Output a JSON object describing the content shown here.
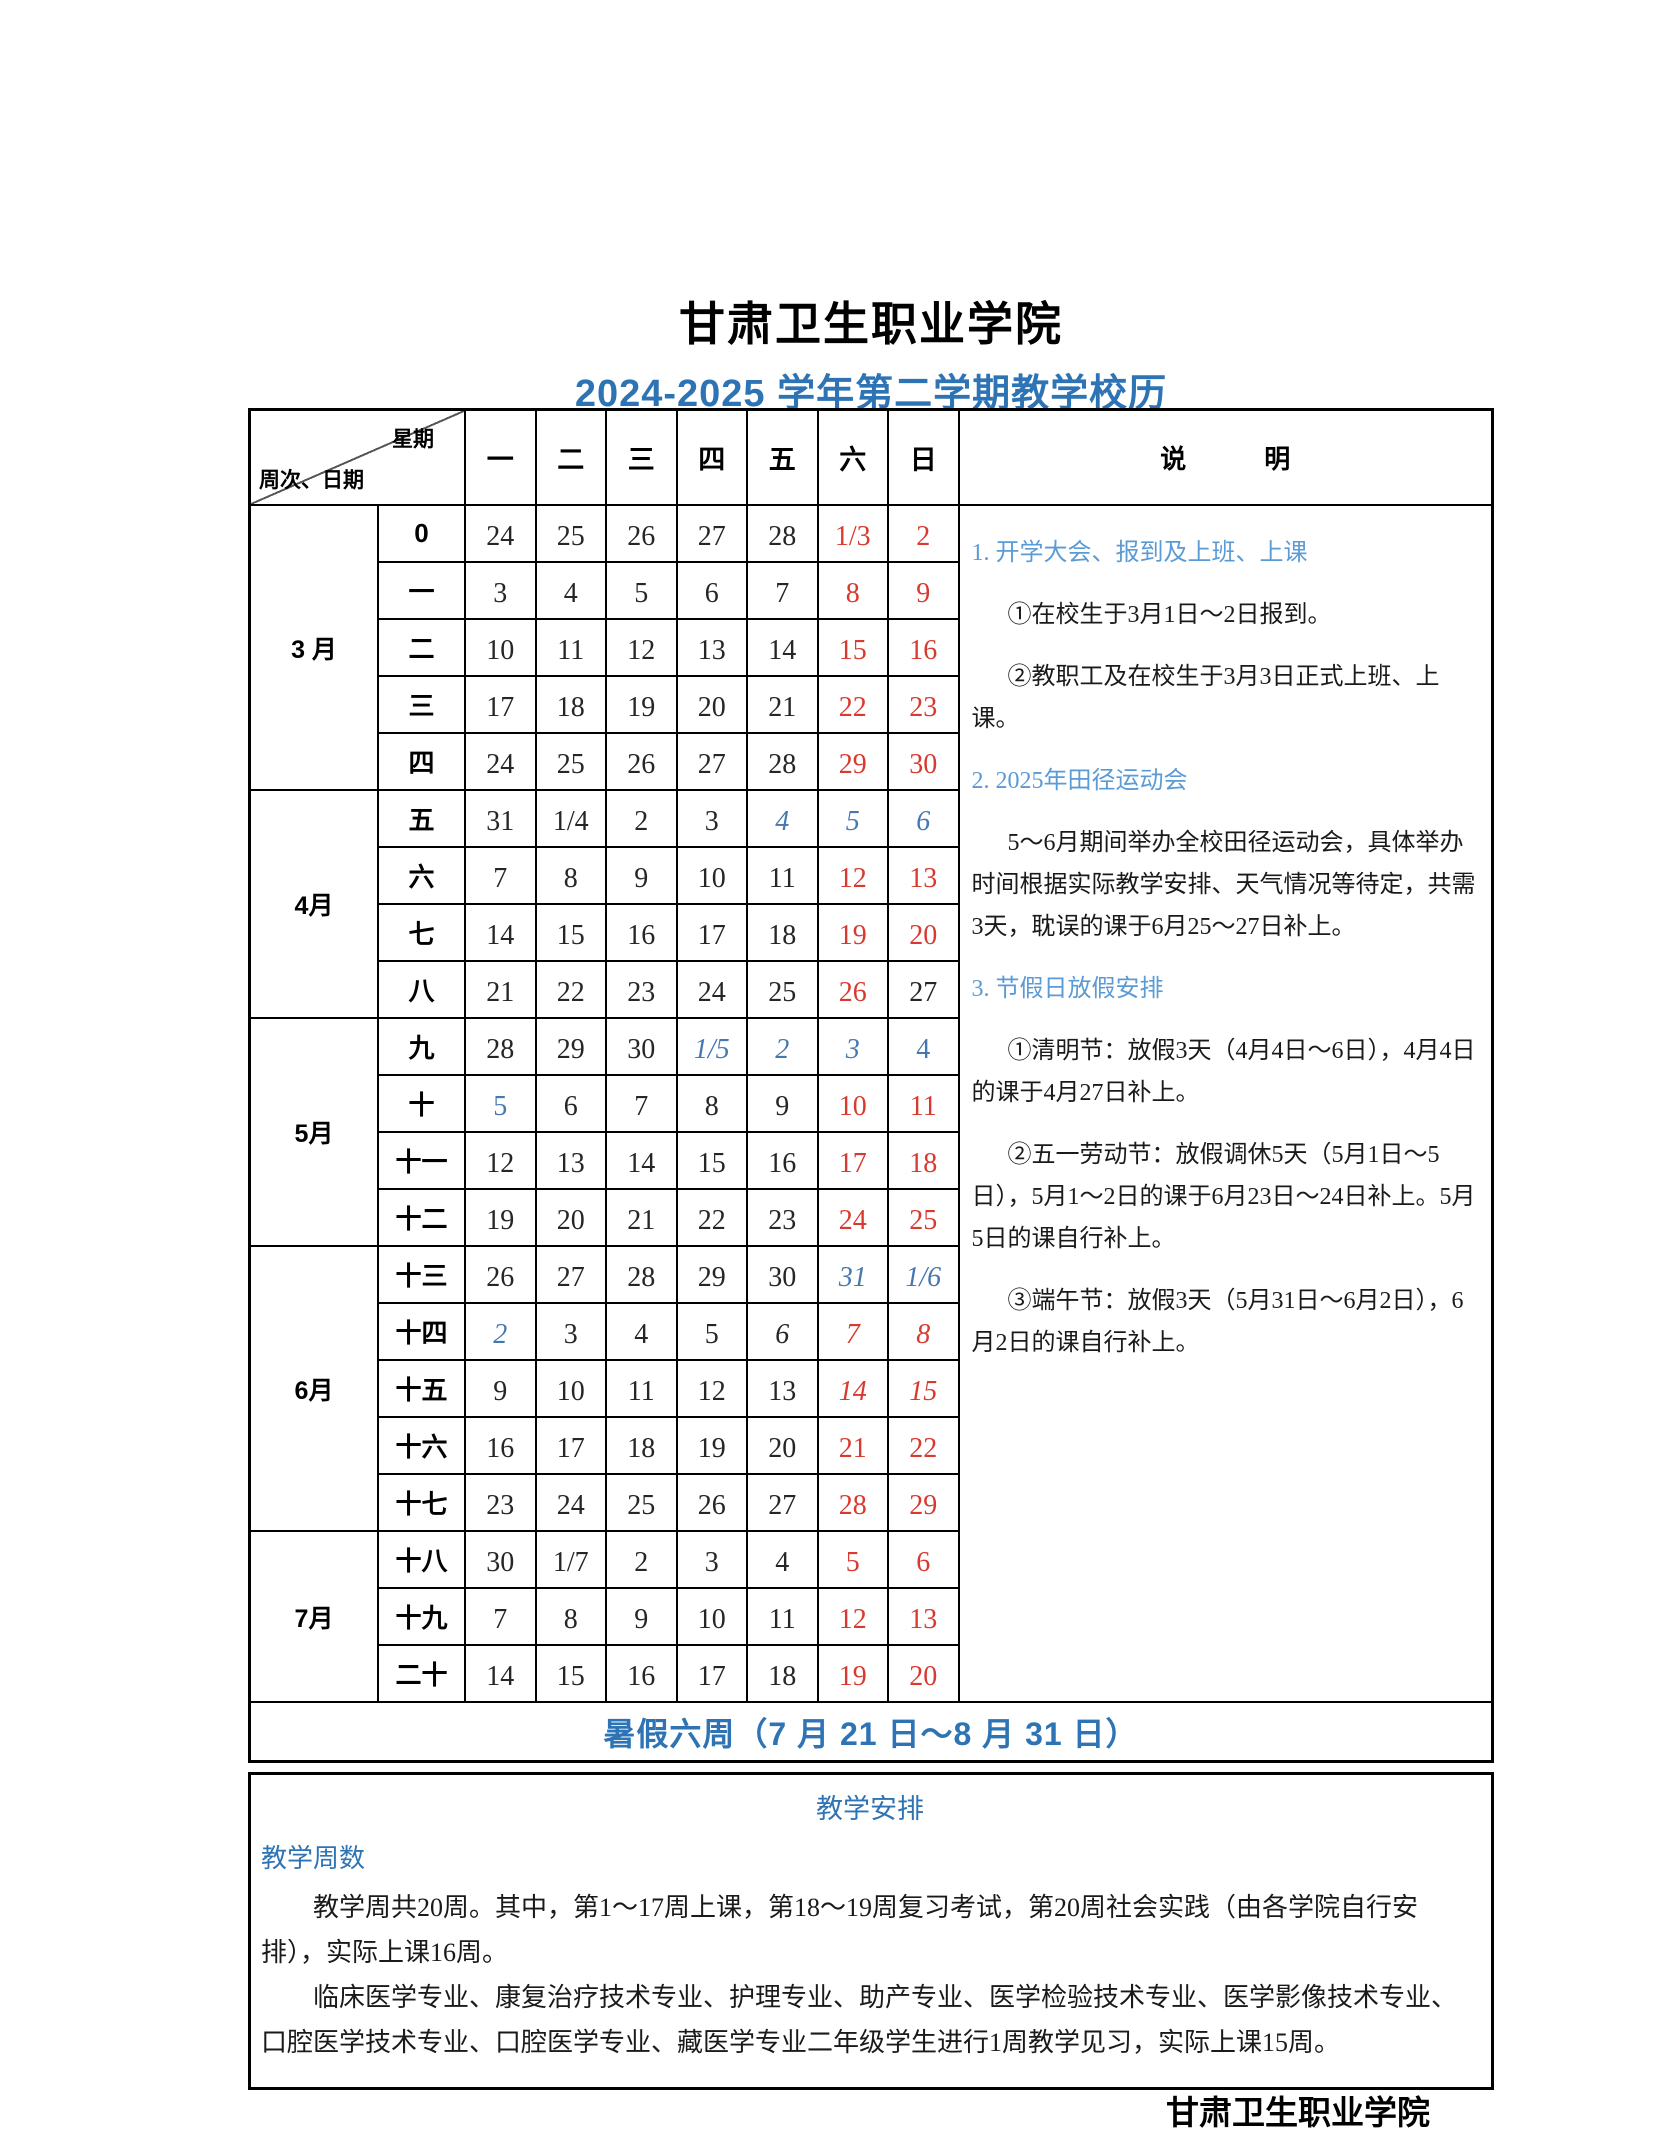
{
  "title": "甘肃卫生职业学院",
  "subtitle": "2024-2025 学年第二学期教学校历",
  "footer": "甘肃卫生职业学院",
  "colors": {
    "accent_blue": "#2E74B5",
    "note_heading_blue": "#5B9BD5",
    "holiday_blue": "#4678B0",
    "weekend_red": "#D93A30"
  },
  "calendar": {
    "corner": {
      "top": "星期",
      "bottom": "周次、日期"
    },
    "weekday_headers": [
      "一",
      "二",
      "三",
      "四",
      "五",
      "六",
      "日"
    ],
    "notes_header": "说　　　明",
    "summer_label": "暑假六周（7 月 21 日～8 月 31 日）",
    "month_groups": [
      {
        "month": "3 月",
        "rows": [
          {
            "week": "0",
            "days": [
              {
                "t": "24",
                "s": "n"
              },
              {
                "t": "25",
                "s": "n"
              },
              {
                "t": "26",
                "s": "n"
              },
              {
                "t": "27",
                "s": "n"
              },
              {
                "t": "28",
                "s": "n"
              },
              {
                "t": "1/3",
                "s": "r"
              },
              {
                "t": "2",
                "s": "r"
              }
            ]
          },
          {
            "week": "一",
            "days": [
              {
                "t": "3",
                "s": "n"
              },
              {
                "t": "4",
                "s": "n"
              },
              {
                "t": "5",
                "s": "n"
              },
              {
                "t": "6",
                "s": "n"
              },
              {
                "t": "7",
                "s": "n"
              },
              {
                "t": "8",
                "s": "r"
              },
              {
                "t": "9",
                "s": "r"
              }
            ]
          },
          {
            "week": "二",
            "days": [
              {
                "t": "10",
                "s": "n"
              },
              {
                "t": "11",
                "s": "n"
              },
              {
                "t": "12",
                "s": "n"
              },
              {
                "t": "13",
                "s": "n"
              },
              {
                "t": "14",
                "s": "n"
              },
              {
                "t": "15",
                "s": "r"
              },
              {
                "t": "16",
                "s": "r"
              }
            ]
          },
          {
            "week": "三",
            "days": [
              {
                "t": "17",
                "s": "n"
              },
              {
                "t": "18",
                "s": "n"
              },
              {
                "t": "19",
                "s": "n"
              },
              {
                "t": "20",
                "s": "n"
              },
              {
                "t": "21",
                "s": "n"
              },
              {
                "t": "22",
                "s": "r"
              },
              {
                "t": "23",
                "s": "r"
              }
            ]
          },
          {
            "week": "四",
            "days": [
              {
                "t": "24",
                "s": "n"
              },
              {
                "t": "25",
                "s": "n"
              },
              {
                "t": "26",
                "s": "n"
              },
              {
                "t": "27",
                "s": "n"
              },
              {
                "t": "28",
                "s": "n"
              },
              {
                "t": "29",
                "s": "r"
              },
              {
                "t": "30",
                "s": "r"
              }
            ]
          }
        ]
      },
      {
        "month": "4月",
        "rows": [
          {
            "week": "五",
            "days": [
              {
                "t": "31",
                "s": "n"
              },
              {
                "t": "1/4",
                "s": "n"
              },
              {
                "t": "2",
                "s": "n"
              },
              {
                "t": "3",
                "s": "n"
              },
              {
                "t": "4",
                "s": "bi"
              },
              {
                "t": "5",
                "s": "bi"
              },
              {
                "t": "6",
                "s": "bi"
              }
            ]
          },
          {
            "week": "六",
            "days": [
              {
                "t": "7",
                "s": "n"
              },
              {
                "t": "8",
                "s": "n"
              },
              {
                "t": "9",
                "s": "n"
              },
              {
                "t": "10",
                "s": "n"
              },
              {
                "t": "11",
                "s": "n"
              },
              {
                "t": "12",
                "s": "r"
              },
              {
                "t": "13",
                "s": "r"
              }
            ]
          },
          {
            "week": "七",
            "days": [
              {
                "t": "14",
                "s": "n"
              },
              {
                "t": "15",
                "s": "n"
              },
              {
                "t": "16",
                "s": "n"
              },
              {
                "t": "17",
                "s": "n"
              },
              {
                "t": "18",
                "s": "n"
              },
              {
                "t": "19",
                "s": "r"
              },
              {
                "t": "20",
                "s": "r"
              }
            ]
          },
          {
            "week": "八",
            "days": [
              {
                "t": "21",
                "s": "n"
              },
              {
                "t": "22",
                "s": "n"
              },
              {
                "t": "23",
                "s": "n"
              },
              {
                "t": "24",
                "s": "n"
              },
              {
                "t": "25",
                "s": "n"
              },
              {
                "t": "26",
                "s": "r"
              },
              {
                "t": "27",
                "s": "n"
              }
            ]
          }
        ]
      },
      {
        "month": "5月",
        "rows": [
          {
            "week": "九",
            "days": [
              {
                "t": "28",
                "s": "n"
              },
              {
                "t": "29",
                "s": "n"
              },
              {
                "t": "30",
                "s": "n"
              },
              {
                "t": "1/5",
                "s": "bi"
              },
              {
                "t": "2",
                "s": "bi"
              },
              {
                "t": "3",
                "s": "bi"
              },
              {
                "t": "4",
                "s": "b"
              }
            ]
          },
          {
            "week": "十",
            "days": [
              {
                "t": "5",
                "s": "b"
              },
              {
                "t": "6",
                "s": "n"
              },
              {
                "t": "7",
                "s": "n"
              },
              {
                "t": "8",
                "s": "n"
              },
              {
                "t": "9",
                "s": "n"
              },
              {
                "t": "10",
                "s": "r"
              },
              {
                "t": "11",
                "s": "r"
              }
            ]
          },
          {
            "week": "十一",
            "days": [
              {
                "t": "12",
                "s": "n"
              },
              {
                "t": "13",
                "s": "n"
              },
              {
                "t": "14",
                "s": "n"
              },
              {
                "t": "15",
                "s": "n"
              },
              {
                "t": "16",
                "s": "n"
              },
              {
                "t": "17",
                "s": "r"
              },
              {
                "t": "18",
                "s": "r"
              }
            ]
          },
          {
            "week": "十二",
            "days": [
              {
                "t": "19",
                "s": "n"
              },
              {
                "t": "20",
                "s": "n"
              },
              {
                "t": "21",
                "s": "n"
              },
              {
                "t": "22",
                "s": "n"
              },
              {
                "t": "23",
                "s": "n"
              },
              {
                "t": "24",
                "s": "r"
              },
              {
                "t": "25",
                "s": "r"
              }
            ]
          }
        ]
      },
      {
        "month": "6月",
        "rows": [
          {
            "week": "十三",
            "days": [
              {
                "t": "26",
                "s": "n"
              },
              {
                "t": "27",
                "s": "n"
              },
              {
                "t": "28",
                "s": "n"
              },
              {
                "t": "29",
                "s": "n"
              },
              {
                "t": "30",
                "s": "n"
              },
              {
                "t": "31",
                "s": "bi"
              },
              {
                "t": "1/6",
                "s": "bi"
              }
            ]
          },
          {
            "week": "十四",
            "days": [
              {
                "t": "2",
                "s": "bi"
              },
              {
                "t": "3",
                "s": "n"
              },
              {
                "t": "4",
                "s": "n"
              },
              {
                "t": "5",
                "s": "n"
              },
              {
                "t": "6",
                "s": "i"
              },
              {
                "t": "7",
                "s": "ri"
              },
              {
                "t": "8",
                "s": "ri"
              }
            ]
          },
          {
            "week": "十五",
            "days": [
              {
                "t": "9",
                "s": "n"
              },
              {
                "t": "10",
                "s": "n"
              },
              {
                "t": "11",
                "s": "n"
              },
              {
                "t": "12",
                "s": "n"
              },
              {
                "t": "13",
                "s": "n"
              },
              {
                "t": "14",
                "s": "ri"
              },
              {
                "t": "15",
                "s": "ri"
              }
            ]
          },
          {
            "week": "十六",
            "days": [
              {
                "t": "16",
                "s": "n"
              },
              {
                "t": "17",
                "s": "n"
              },
              {
                "t": "18",
                "s": "n"
              },
              {
                "t": "19",
                "s": "n"
              },
              {
                "t": "20",
                "s": "n"
              },
              {
                "t": "21",
                "s": "r"
              },
              {
                "t": "22",
                "s": "r"
              }
            ]
          },
          {
            "week": "十七",
            "days": [
              {
                "t": "23",
                "s": "n"
              },
              {
                "t": "24",
                "s": "n"
              },
              {
                "t": "25",
                "s": "n"
              },
              {
                "t": "26",
                "s": "n"
              },
              {
                "t": "27",
                "s": "n"
              },
              {
                "t": "28",
                "s": "r"
              },
              {
                "t": "29",
                "s": "r"
              }
            ]
          }
        ]
      },
      {
        "month": "7月",
        "rows": [
          {
            "week": "十八",
            "days": [
              {
                "t": "30",
                "s": "n"
              },
              {
                "t": "1/7",
                "s": "n"
              },
              {
                "t": "2",
                "s": "n"
              },
              {
                "t": "3",
                "s": "n"
              },
              {
                "t": "4",
                "s": "n"
              },
              {
                "t": "5",
                "s": "r"
              },
              {
                "t": "6",
                "s": "r"
              }
            ]
          },
          {
            "week": "十九",
            "days": [
              {
                "t": "7",
                "s": "n"
              },
              {
                "t": "8",
                "s": "n"
              },
              {
                "t": "9",
                "s": "n"
              },
              {
                "t": "10",
                "s": "n"
              },
              {
                "t": "11",
                "s": "n"
              },
              {
                "t": "12",
                "s": "r"
              },
              {
                "t": "13",
                "s": "r"
              }
            ]
          },
          {
            "week": "二十",
            "days": [
              {
                "t": "14",
                "s": "n"
              },
              {
                "t": "15",
                "s": "n"
              },
              {
                "t": "16",
                "s": "n"
              },
              {
                "t": "17",
                "s": "n"
              },
              {
                "t": "18",
                "s": "n"
              },
              {
                "t": "19",
                "s": "r"
              },
              {
                "t": "20",
                "s": "r"
              }
            ]
          }
        ]
      }
    ]
  },
  "notes": {
    "items": [
      {
        "type": "heading",
        "text": "1. 开学大会、报到及上班、上课"
      },
      {
        "type": "body",
        "text": "①在校生于3月1日～2日报到。"
      },
      {
        "type": "body",
        "text": "②教职工及在校生于3月3日正式上班、上课。"
      },
      {
        "type": "heading",
        "text": "2. 2025年田径运动会"
      },
      {
        "type": "body",
        "text": "5～6月期间举办全校田径运动会，具体举办时间根据实际教学安排、天气情况等待定，共需3天，耽误的课于6月25～27日补上。"
      },
      {
        "type": "heading",
        "text": "3. 节假日放假安排"
      },
      {
        "type": "body",
        "text": "①清明节：放假3天（4月4日～6日），4月4日的课于4月27日补上。"
      },
      {
        "type": "body",
        "text": "②五一劳动节：放假调休5天（5月1日～5日），5月1～2日的课于6月23日～24日补上。5月5日的课自行补上。"
      },
      {
        "type": "body",
        "text": "③端午节：放假3天（5月31日～6月2日），6月2日的课自行补上。"
      }
    ]
  },
  "teaching": {
    "heading": "教学安排",
    "subheading": "教学周数",
    "paragraphs": [
      "教学周共20周。其中，第1～17周上课，第18～19周复习考试，第20周社会实践（由各学院自行安排），实际上课16周。",
      "临床医学专业、康复治疗技术专业、护理专业、助产专业、医学检验技术专业、医学影像技术专业、口腔医学技术专业、口腔医学专业、藏医学专业二年级学生进行1周教学见习，实际上课15周。"
    ]
  }
}
